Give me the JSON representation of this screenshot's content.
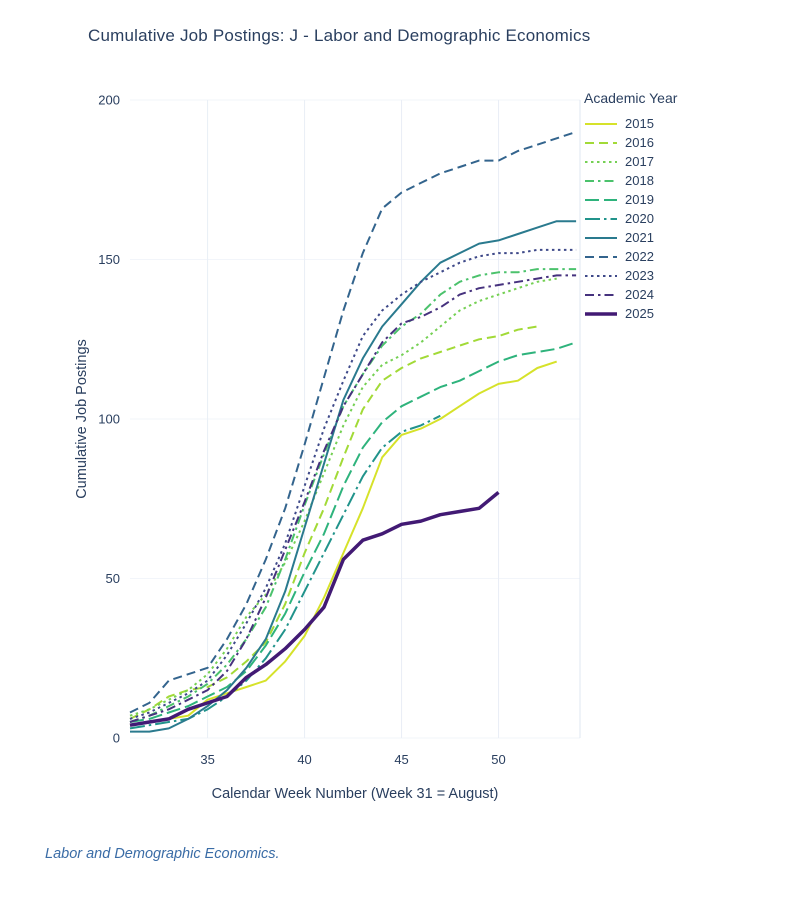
{
  "page": {
    "footer": "Labor and Demographic Economics."
  },
  "chart_data": {
    "type": "line",
    "title": "Cumulative Job Postings: J - Labor and Demographic Economics",
    "xlabel": "Calendar Week Number (Week 31 = August)",
    "ylabel": "Cumulative Job Postings",
    "legend_title": "Academic Year",
    "xlim": [
      31,
      54.2
    ],
    "ylim": [
      0,
      200
    ],
    "x_ticks": [
      35,
      40,
      45,
      50
    ],
    "y_ticks": [
      0,
      50,
      100,
      150,
      200
    ],
    "grid": true,
    "legend_position": "right",
    "series": [
      {
        "name": "2015",
        "color": "#d6e22a",
        "dash": "solid",
        "width": 2,
        "points": [
          [
            31,
            4
          ],
          [
            32,
            5
          ],
          [
            33,
            6
          ],
          [
            34,
            7
          ],
          [
            35,
            12
          ],
          [
            36,
            14
          ],
          [
            37,
            16
          ],
          [
            38,
            18
          ],
          [
            39,
            24
          ],
          [
            40,
            32
          ],
          [
            41,
            44
          ],
          [
            42,
            58
          ],
          [
            43,
            72
          ],
          [
            44,
            88
          ],
          [
            45,
            95
          ],
          [
            46,
            97
          ],
          [
            47,
            100
          ],
          [
            48,
            104
          ],
          [
            49,
            108
          ],
          [
            50,
            111
          ],
          [
            51,
            112
          ],
          [
            52,
            116
          ],
          [
            53,
            118
          ]
        ]
      },
      {
        "name": "2016",
        "color": "#a2da37",
        "dash": "dash",
        "width": 2,
        "points": [
          [
            31,
            6
          ],
          [
            32,
            9
          ],
          [
            33,
            13
          ],
          [
            34,
            15
          ],
          [
            35,
            16
          ],
          [
            36,
            19
          ],
          [
            37,
            24
          ],
          [
            38,
            30
          ],
          [
            39,
            42
          ],
          [
            40,
            58
          ],
          [
            41,
            72
          ],
          [
            42,
            88
          ],
          [
            43,
            103
          ],
          [
            44,
            112
          ],
          [
            45,
            116
          ],
          [
            46,
            119
          ],
          [
            47,
            121
          ],
          [
            48,
            123
          ],
          [
            49,
            125
          ],
          [
            50,
            126
          ],
          [
            51,
            128
          ],
          [
            52,
            129
          ]
        ]
      },
      {
        "name": "2017",
        "color": "#75d054",
        "dash": "dot",
        "width": 2,
        "points": [
          [
            31,
            7
          ],
          [
            32,
            9
          ],
          [
            33,
            12
          ],
          [
            34,
            15
          ],
          [
            35,
            20
          ],
          [
            36,
            28
          ],
          [
            37,
            38
          ],
          [
            38,
            45
          ],
          [
            39,
            55
          ],
          [
            40,
            68
          ],
          [
            41,
            83
          ],
          [
            42,
            98
          ],
          [
            43,
            110
          ],
          [
            44,
            117
          ],
          [
            45,
            120
          ],
          [
            46,
            124
          ],
          [
            47,
            129
          ],
          [
            48,
            134
          ],
          [
            49,
            137
          ],
          [
            50,
            139
          ],
          [
            51,
            141
          ],
          [
            52,
            143
          ],
          [
            53,
            144
          ]
        ]
      },
      {
        "name": "2018",
        "color": "#4bc26c",
        "dash": "dashdot",
        "width": 2,
        "points": [
          [
            31,
            5
          ],
          [
            32,
            7
          ],
          [
            33,
            10
          ],
          [
            34,
            13
          ],
          [
            35,
            17
          ],
          [
            36,
            23
          ],
          [
            37,
            31
          ],
          [
            38,
            41
          ],
          [
            39,
            56
          ],
          [
            40,
            73
          ],
          [
            41,
            89
          ],
          [
            42,
            104
          ],
          [
            43,
            114
          ],
          [
            44,
            123
          ],
          [
            45,
            129
          ],
          [
            46,
            133
          ],
          [
            47,
            139
          ],
          [
            48,
            143
          ],
          [
            49,
            145
          ],
          [
            50,
            146
          ],
          [
            51,
            146
          ],
          [
            52,
            147
          ],
          [
            53,
            147
          ],
          [
            54,
            147
          ]
        ]
      },
      {
        "name": "2019",
        "color": "#2eb37c",
        "dash": "longdash",
        "width": 2,
        "points": [
          [
            31,
            5
          ],
          [
            32,
            6
          ],
          [
            33,
            8
          ],
          [
            34,
            10
          ],
          [
            35,
            13
          ],
          [
            36,
            16
          ],
          [
            37,
            21
          ],
          [
            38,
            29
          ],
          [
            39,
            39
          ],
          [
            40,
            52
          ],
          [
            41,
            64
          ],
          [
            42,
            79
          ],
          [
            43,
            91
          ],
          [
            44,
            99
          ],
          [
            45,
            104
          ],
          [
            46,
            107
          ],
          [
            47,
            110
          ],
          [
            48,
            112
          ],
          [
            49,
            115
          ],
          [
            50,
            118
          ],
          [
            51,
            120
          ],
          [
            52,
            121
          ],
          [
            53,
            122
          ],
          [
            54,
            124
          ]
        ]
      },
      {
        "name": "2020",
        "color": "#21938b",
        "dash": "longdashdot",
        "width": 2,
        "points": [
          [
            31,
            3
          ],
          [
            32,
            4
          ],
          [
            33,
            5
          ],
          [
            34,
            6
          ],
          [
            35,
            9
          ],
          [
            36,
            13
          ],
          [
            37,
            18
          ],
          [
            38,
            25
          ],
          [
            39,
            34
          ],
          [
            40,
            46
          ],
          [
            41,
            58
          ],
          [
            42,
            70
          ],
          [
            43,
            82
          ],
          [
            44,
            91
          ],
          [
            45,
            96
          ],
          [
            46,
            98
          ],
          [
            47,
            101
          ]
        ]
      },
      {
        "name": "2021",
        "color": "#2a7a8e",
        "dash": "solid",
        "width": 2,
        "points": [
          [
            31,
            2
          ],
          [
            32,
            2
          ],
          [
            33,
            3
          ],
          [
            34,
            6
          ],
          [
            35,
            10
          ],
          [
            36,
            15
          ],
          [
            37,
            22
          ],
          [
            38,
            31
          ],
          [
            39,
            46
          ],
          [
            40,
            66
          ],
          [
            41,
            86
          ],
          [
            42,
            106
          ],
          [
            43,
            119
          ],
          [
            44,
            129
          ],
          [
            45,
            136
          ],
          [
            46,
            143
          ],
          [
            47,
            149
          ],
          [
            48,
            152
          ],
          [
            49,
            155
          ],
          [
            50,
            156
          ],
          [
            51,
            158
          ],
          [
            52,
            160
          ],
          [
            53,
            162
          ],
          [
            54,
            162
          ]
        ]
      },
      {
        "name": "2022",
        "color": "#33648d",
        "dash": "dash",
        "width": 2,
        "points": [
          [
            31,
            8
          ],
          [
            32,
            11
          ],
          [
            33,
            18
          ],
          [
            34,
            20
          ],
          [
            35,
            22
          ],
          [
            36,
            31
          ],
          [
            37,
            42
          ],
          [
            38,
            56
          ],
          [
            39,
            72
          ],
          [
            40,
            92
          ],
          [
            41,
            113
          ],
          [
            42,
            134
          ],
          [
            43,
            152
          ],
          [
            44,
            166
          ],
          [
            45,
            171
          ],
          [
            46,
            174
          ],
          [
            47,
            177
          ],
          [
            48,
            179
          ],
          [
            49,
            181
          ],
          [
            50,
            181
          ],
          [
            51,
            184
          ],
          [
            52,
            186
          ],
          [
            53,
            188
          ],
          [
            54,
            190
          ]
        ]
      },
      {
        "name": "2023",
        "color": "#3e4989",
        "dash": "dot",
        "width": 2,
        "points": [
          [
            31,
            6
          ],
          [
            32,
            8
          ],
          [
            33,
            11
          ],
          [
            34,
            14
          ],
          [
            35,
            18
          ],
          [
            36,
            26
          ],
          [
            37,
            36
          ],
          [
            38,
            47
          ],
          [
            39,
            61
          ],
          [
            40,
            79
          ],
          [
            41,
            97
          ],
          [
            42,
            112
          ],
          [
            43,
            126
          ],
          [
            44,
            134
          ],
          [
            45,
            139
          ],
          [
            46,
            143
          ],
          [
            47,
            146
          ],
          [
            48,
            149
          ],
          [
            49,
            151
          ],
          [
            50,
            152
          ],
          [
            51,
            152
          ],
          [
            52,
            153
          ],
          [
            53,
            153
          ],
          [
            54,
            153
          ]
        ]
      },
      {
        "name": "2024",
        "color": "#46327e",
        "dash": "dashdot",
        "width": 2,
        "points": [
          [
            31,
            5
          ],
          [
            32,
            7
          ],
          [
            33,
            9
          ],
          [
            34,
            12
          ],
          [
            35,
            15
          ],
          [
            36,
            21
          ],
          [
            37,
            31
          ],
          [
            38,
            44
          ],
          [
            39,
            59
          ],
          [
            40,
            74
          ],
          [
            41,
            90
          ],
          [
            42,
            104
          ],
          [
            43,
            114
          ],
          [
            44,
            124
          ],
          [
            45,
            130
          ],
          [
            46,
            132
          ],
          [
            47,
            135
          ],
          [
            48,
            139
          ],
          [
            49,
            141
          ],
          [
            50,
            142
          ],
          [
            51,
            143
          ],
          [
            52,
            144
          ],
          [
            53,
            145
          ],
          [
            54,
            145
          ]
        ]
      },
      {
        "name": "2025",
        "color": "#421a74",
        "dash": "solid",
        "width": 3.5,
        "points": [
          [
            31,
            4
          ],
          [
            32,
            5
          ],
          [
            33,
            6
          ],
          [
            34,
            9
          ],
          [
            35,
            11
          ],
          [
            36,
            13
          ],
          [
            37,
            19
          ],
          [
            38,
            23
          ],
          [
            39,
            28
          ],
          [
            40,
            34
          ],
          [
            41,
            41
          ],
          [
            42,
            56
          ],
          [
            43,
            62
          ],
          [
            44,
            64
          ],
          [
            45,
            67
          ],
          [
            46,
            68
          ],
          [
            47,
            70
          ],
          [
            48,
            71
          ],
          [
            49,
            72
          ],
          [
            50,
            77
          ]
        ]
      }
    ]
  }
}
